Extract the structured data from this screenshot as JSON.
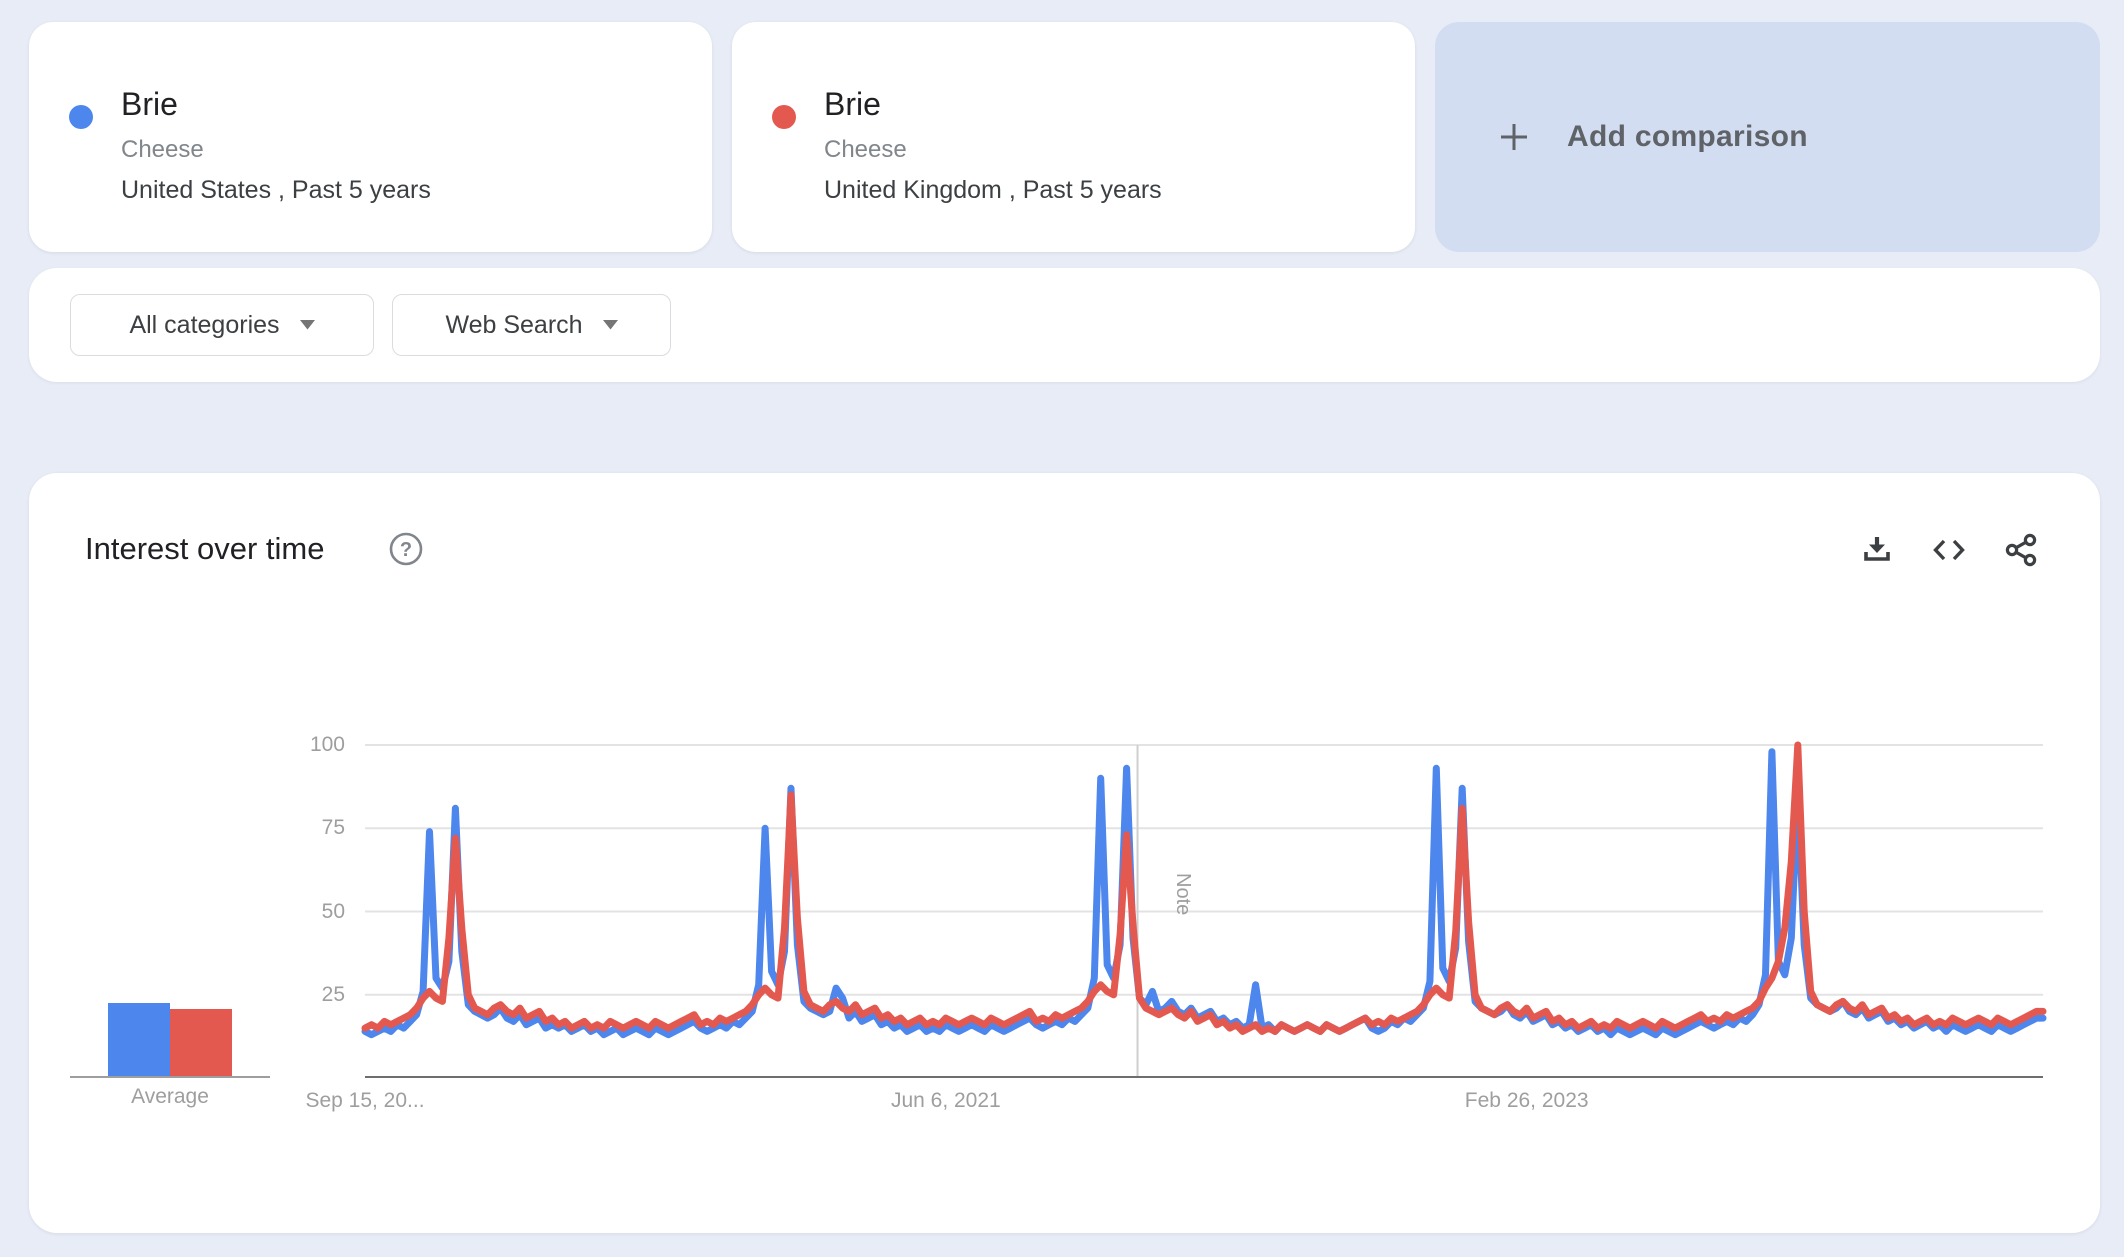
{
  "terms": [
    {
      "term": "Brie",
      "topic": "Cheese",
      "scope": "United States , Past 5 years",
      "color": "#4d86ec"
    },
    {
      "term": "Brie",
      "topic": "Cheese",
      "scope": "United Kingdom , Past 5 years",
      "color": "#e4594f"
    }
  ],
  "add_comparison": {
    "label": "Add comparison"
  },
  "filters": {
    "category": "All categories",
    "search_type": "Web Search"
  },
  "panel": {
    "title": "Interest over time"
  },
  "chart_data": {
    "type": "line",
    "title": "Interest over time",
    "x_start": "Sep 15, 2019",
    "interval": "weekly",
    "x_ticks": [
      "Sep 15, 20...",
      "Jun 6, 2021",
      "Feb 26, 2023"
    ],
    "x_tick_weeks": [
      0,
      90,
      180
    ],
    "y_ticks": [
      25,
      50,
      75,
      100
    ],
    "ylim": [
      0,
      100
    ],
    "grid": true,
    "note": {
      "label": "Note",
      "week": 119.7
    },
    "average_label": "Average",
    "series": [
      {
        "name": "Brie (United States)",
        "color": "#4d86ec",
        "average": 22,
        "values": [
          14,
          13,
          14,
          15,
          14,
          16,
          15,
          17,
          19,
          26,
          74,
          30,
          27,
          35,
          81,
          38,
          22,
          20,
          19,
          18,
          19,
          21,
          18,
          17,
          19,
          16,
          17,
          18,
          15,
          16,
          15,
          16,
          14,
          15,
          16,
          14,
          15,
          13,
          14,
          15,
          13,
          14,
          15,
          14,
          13,
          15,
          14,
          13,
          14,
          15,
          16,
          17,
          15,
          14,
          15,
          16,
          15,
          17,
          16,
          18,
          20,
          28,
          75,
          32,
          28,
          38,
          87,
          40,
          23,
          21,
          20,
          19,
          20,
          27,
          24,
          18,
          20,
          17,
          18,
          19,
          16,
          17,
          15,
          16,
          14,
          15,
          16,
          14,
          15,
          14,
          16,
          15,
          14,
          15,
          16,
          15,
          14,
          16,
          15,
          14,
          15,
          16,
          17,
          18,
          16,
          15,
          16,
          17,
          16,
          18,
          17,
          19,
          21,
          30,
          90,
          34,
          30,
          40,
          93,
          42,
          24,
          22,
          26,
          20,
          21,
          23,
          20,
          19,
          21,
          18,
          19,
          20,
          17,
          18,
          16,
          17,
          15,
          16,
          28,
          15,
          16,
          14,
          16,
          15,
          14,
          15,
          16,
          15,
          14,
          16,
          15,
          14,
          15,
          16,
          17,
          18,
          15,
          14,
          15,
          17,
          16,
          18,
          17,
          19,
          21,
          29,
          93,
          33,
          29,
          39,
          87,
          41,
          23,
          21,
          20,
          19,
          20,
          22,
          19,
          18,
          20,
          17,
          18,
          19,
          16,
          17,
          15,
          16,
          14,
          15,
          16,
          14,
          15,
          13,
          15,
          14,
          13,
          14,
          15,
          14,
          13,
          15,
          14,
          13,
          14,
          15,
          16,
          17,
          16,
          15,
          16,
          17,
          16,
          18,
          17,
          19,
          22,
          31,
          98,
          35,
          31,
          42,
          86,
          40,
          24,
          22,
          21,
          20,
          21,
          23,
          20,
          19,
          21,
          18,
          19,
          20,
          17,
          18,
          16,
          17,
          15,
          16,
          17,
          15,
          16,
          14,
          16,
          15,
          14,
          15,
          16,
          15,
          14,
          16,
          15,
          14,
          15,
          16,
          17,
          18,
          18
        ]
      },
      {
        "name": "Brie (United Kingdom)",
        "color": "#e4594f",
        "average": 20,
        "values": [
          15,
          16,
          15,
          17,
          16,
          17,
          18,
          19,
          21,
          24,
          26,
          24,
          23,
          42,
          72,
          45,
          25,
          21,
          20,
          19,
          21,
          22,
          20,
          19,
          21,
          18,
          19,
          20,
          17,
          18,
          16,
          17,
          15,
          16,
          17,
          15,
          16,
          15,
          17,
          16,
          15,
          16,
          17,
          16,
          15,
          17,
          16,
          15,
          16,
          17,
          18,
          19,
          16,
          17,
          16,
          18,
          17,
          18,
          19,
          20,
          22,
          25,
          27,
          25,
          24,
          45,
          85,
          48,
          26,
          22,
          21,
          20,
          22,
          23,
          21,
          20,
          22,
          19,
          20,
          21,
          18,
          19,
          17,
          18,
          16,
          17,
          18,
          16,
          17,
          16,
          18,
          17,
          16,
          17,
          18,
          17,
          16,
          18,
          17,
          16,
          17,
          18,
          19,
          20,
          17,
          18,
          17,
          19,
          18,
          19,
          20,
          21,
          23,
          26,
          28,
          26,
          25,
          43,
          73,
          46,
          24,
          21,
          20,
          19,
          20,
          21,
          19,
          18,
          20,
          17,
          18,
          19,
          16,
          17,
          15,
          16,
          14,
          15,
          16,
          14,
          15,
          14,
          16,
          15,
          14,
          15,
          16,
          15,
          14,
          16,
          15,
          14,
          15,
          16,
          17,
          18,
          16,
          17,
          16,
          18,
          17,
          18,
          19,
          20,
          22,
          25,
          27,
          25,
          24,
          44,
          81,
          47,
          25,
          21,
          20,
          19,
          21,
          22,
          20,
          19,
          21,
          18,
          19,
          20,
          17,
          18,
          16,
          17,
          15,
          16,
          17,
          15,
          16,
          15,
          17,
          16,
          15,
          16,
          17,
          16,
          15,
          17,
          16,
          15,
          16,
          17,
          18,
          19,
          17,
          18,
          17,
          19,
          18,
          19,
          20,
          21,
          23,
          27,
          30,
          35,
          45,
          65,
          100,
          50,
          26,
          22,
          21,
          20,
          22,
          23,
          21,
          20,
          22,
          19,
          20,
          21,
          18,
          19,
          17,
          18,
          16,
          17,
          18,
          16,
          17,
          16,
          18,
          17,
          16,
          17,
          18,
          17,
          16,
          18,
          17,
          16,
          17,
          18,
          19,
          20,
          20
        ]
      }
    ]
  }
}
